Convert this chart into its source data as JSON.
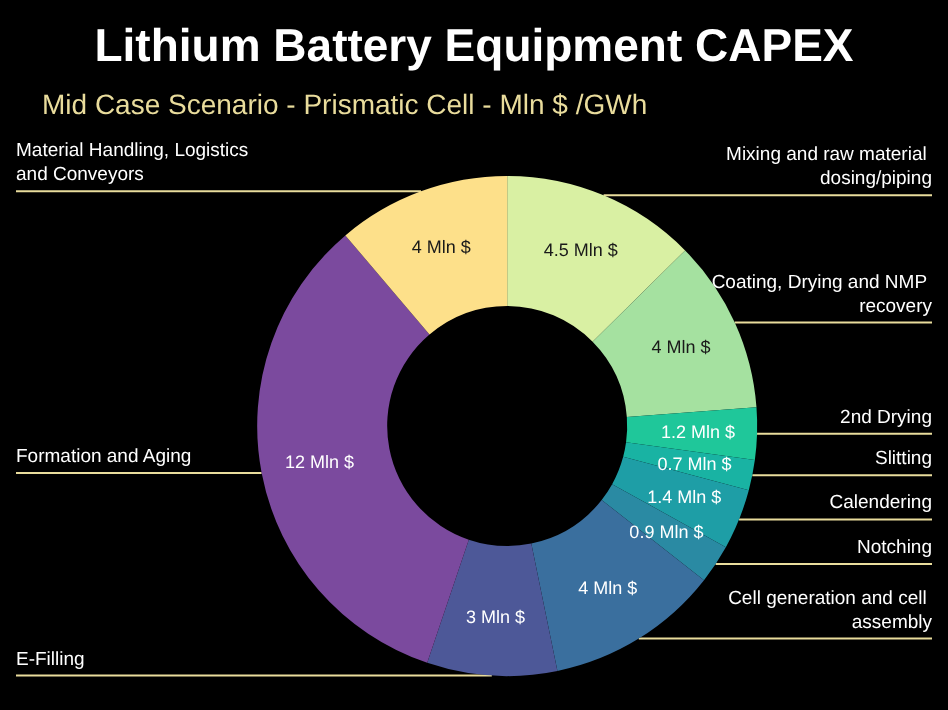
{
  "chart_data": {
    "type": "donut",
    "title": "Lithium Battery Equipment CAPEX",
    "subtitle": "Mid Case Scenario - Prismatic Cell - Mln $ /GWh",
    "categories": [
      "Mixing and raw material dosing/piping",
      "Coating, Drying and NMP recovery",
      "2nd Drying",
      "Slitting",
      "Calendering",
      "Notching",
      "Cell generation and cell assembly",
      "E-Filling",
      "Formation and Aging",
      "Material Handling, Logistics and Conveyors"
    ],
    "values": [
      4.5,
      4,
      1.2,
      0.7,
      1.4,
      0.9,
      4,
      3,
      12,
      4
    ],
    "value_labels": [
      "4.5 Mln $",
      "4 Mln $",
      "1.2 Mln $",
      "0.7 Mln $",
      "1.4 Mln $",
      "0.9 Mln $",
      "4 Mln $",
      "3 Mln $",
      "12 Mln $",
      "4 Mln $"
    ],
    "colors": [
      "#d9f0a3",
      "#a5e1a0",
      "#1fc79a",
      "#19b3a3",
      "#1e9ea6",
      "#2a8aa3",
      "#3a6f9e",
      "#4d5898",
      "#7b4a9e",
      "#fde08a"
    ],
    "legend": false
  }
}
